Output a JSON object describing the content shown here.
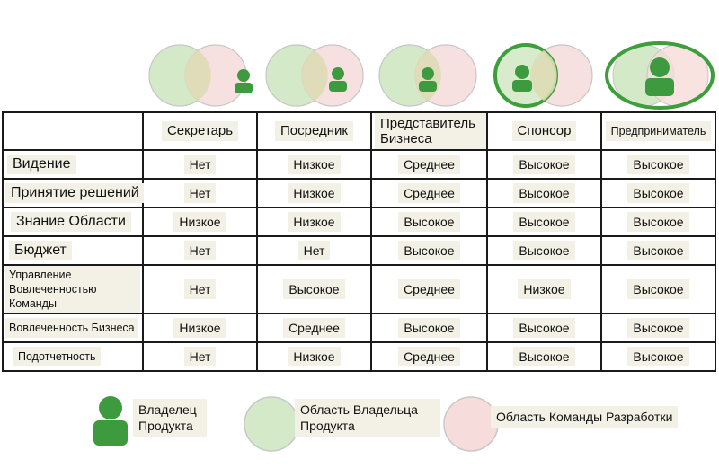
{
  "colors": {
    "owner_area_fill": "#d4e9c8",
    "team_area_fill": "#f6dcda",
    "owner_icon": "#3d9a3f",
    "highlight_ring": "#3e9e3c",
    "chip_bg": "#f3f1e6",
    "grid_line": "#1a1a1a"
  },
  "columns": [
    {
      "label": "Секретарь"
    },
    {
      "label": "Посредник"
    },
    {
      "label": "Представитель Бизнеса"
    },
    {
      "label": "Спонсор"
    },
    {
      "label": "Предприниматель"
    }
  ],
  "rows": [
    {
      "label": "Видение",
      "values": [
        "Нет",
        "Низкое",
        "Среднее",
        "Высокое",
        "Высокое"
      ]
    },
    {
      "label": "Принятие решений",
      "values": [
        "Нет",
        "Низкое",
        "Среднее",
        "Высокое",
        "Высокое"
      ]
    },
    {
      "label": "Знание Области",
      "values": [
        "Низкое",
        "Низкое",
        "Высокое",
        "Высокое",
        "Высокое"
      ]
    },
    {
      "label": "Бюджет",
      "values": [
        "Нет",
        "Нет",
        "Высокое",
        "Высокое",
        "Высокое"
      ]
    },
    {
      "label": "Управление Вовлеченностью Команды",
      "values": [
        "Нет",
        "Высокое",
        "Среднее",
        "Низкое",
        "Высокое"
      ]
    },
    {
      "label": "Вовлеченность Бизнеса",
      "values": [
        "Низкое",
        "Среднее",
        "Высокое",
        "Высокое",
        "Высокое"
      ]
    },
    {
      "label": "Подотчетность",
      "values": [
        "Нет",
        "Низкое",
        "Среднее",
        "Высокое",
        "Высокое"
      ]
    }
  ],
  "legend": {
    "owner": "Владелец Продукта",
    "owner_area": "Область Владельца Продукта",
    "team_area": "Область Команды Разработки"
  },
  "venn_icons": [
    "person-icon"
  ]
}
